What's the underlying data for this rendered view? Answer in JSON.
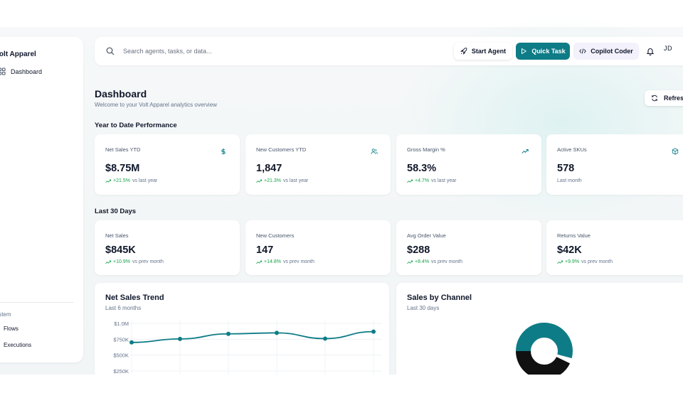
{
  "brand": {
    "name": "Volt Apparel"
  },
  "sidebar": {
    "items": [
      {
        "label": "Dashboard",
        "icon": "dashboard-icon"
      }
    ],
    "section_label": "System",
    "system_items": [
      {
        "label": "Flows"
      },
      {
        "label": "Executions"
      }
    ]
  },
  "topbar": {
    "search_placeholder": "Search agents, tasks, or data...",
    "start_agent": "Start Agent",
    "quick_task": "Quick Task",
    "copilot_coder": "Copilot Coder",
    "avatar_initials": "JD"
  },
  "header": {
    "title": "Dashboard",
    "subtitle": "Welcome to your Volt Apparel analytics overview",
    "refresh": "Refresh"
  },
  "ytd": {
    "title": "Year to Date Performance",
    "cards": [
      {
        "label": "Net Sales YTD",
        "value": "$8.75M",
        "change": "+21.5%",
        "note": "vs last year",
        "icon": "dollar-icon"
      },
      {
        "label": "New Customers YTD",
        "value": "1,847",
        "change": "+21.3%",
        "note": "vs last year",
        "icon": "users-icon"
      },
      {
        "label": "Gross Margin %",
        "value": "58.3%",
        "change": "+4.7%",
        "note": "vs last year",
        "icon": "trending-up-icon"
      },
      {
        "label": "Active SKUs",
        "value": "578",
        "change": "",
        "note": "Last month",
        "icon": "box-icon"
      }
    ]
  },
  "last30": {
    "title": "Last 30 Days",
    "cards": [
      {
        "label": "Net Sales",
        "value": "$845K",
        "change": "+10.9%",
        "note": "vs prev month"
      },
      {
        "label": "New Customers",
        "value": "147",
        "change": "+14.8%",
        "note": "vs prev month"
      },
      {
        "label": "Avg Order Value",
        "value": "$288",
        "change": "+8.4%",
        "note": "vs prev month"
      },
      {
        "label": "Returns Value",
        "value": "$42K",
        "change": "+9.9%",
        "note": "vs prev month"
      }
    ]
  },
  "trend": {
    "title": "Net Sales Trend",
    "subtitle": "Last 6 months",
    "y_ticks": [
      "$1.0M",
      "$750K",
      "$500K",
      "$250K"
    ],
    "line_color": "#0e7c86"
  },
  "channel": {
    "title": "Sales by Channel",
    "subtitle": "Last 30 days",
    "colors": [
      "#0e7c86",
      "#111111"
    ]
  },
  "chart_data": [
    {
      "type": "line",
      "title": "Net Sales Trend",
      "subtitle": "Last 6 months",
      "ylim": [
        250000,
        1000000
      ],
      "y_ticks": [
        1000000,
        750000,
        500000,
        250000
      ],
      "x": [
        1,
        2,
        3,
        4,
        5,
        6
      ],
      "series": [
        {
          "values": [
            700000,
            755000,
            835000,
            850000,
            760000,
            870000
          ]
        }
      ]
    },
    {
      "type": "pie",
      "title": "Sales by Channel",
      "subtitle": "Last 30 days",
      "donut": true,
      "values": [
        54,
        3,
        43
      ],
      "colors": [
        "#0e7c86",
        "#ffffff",
        "#111111"
      ]
    }
  ],
  "colors": {
    "accent": "#0e7c86",
    "positive": "#16a34a"
  }
}
